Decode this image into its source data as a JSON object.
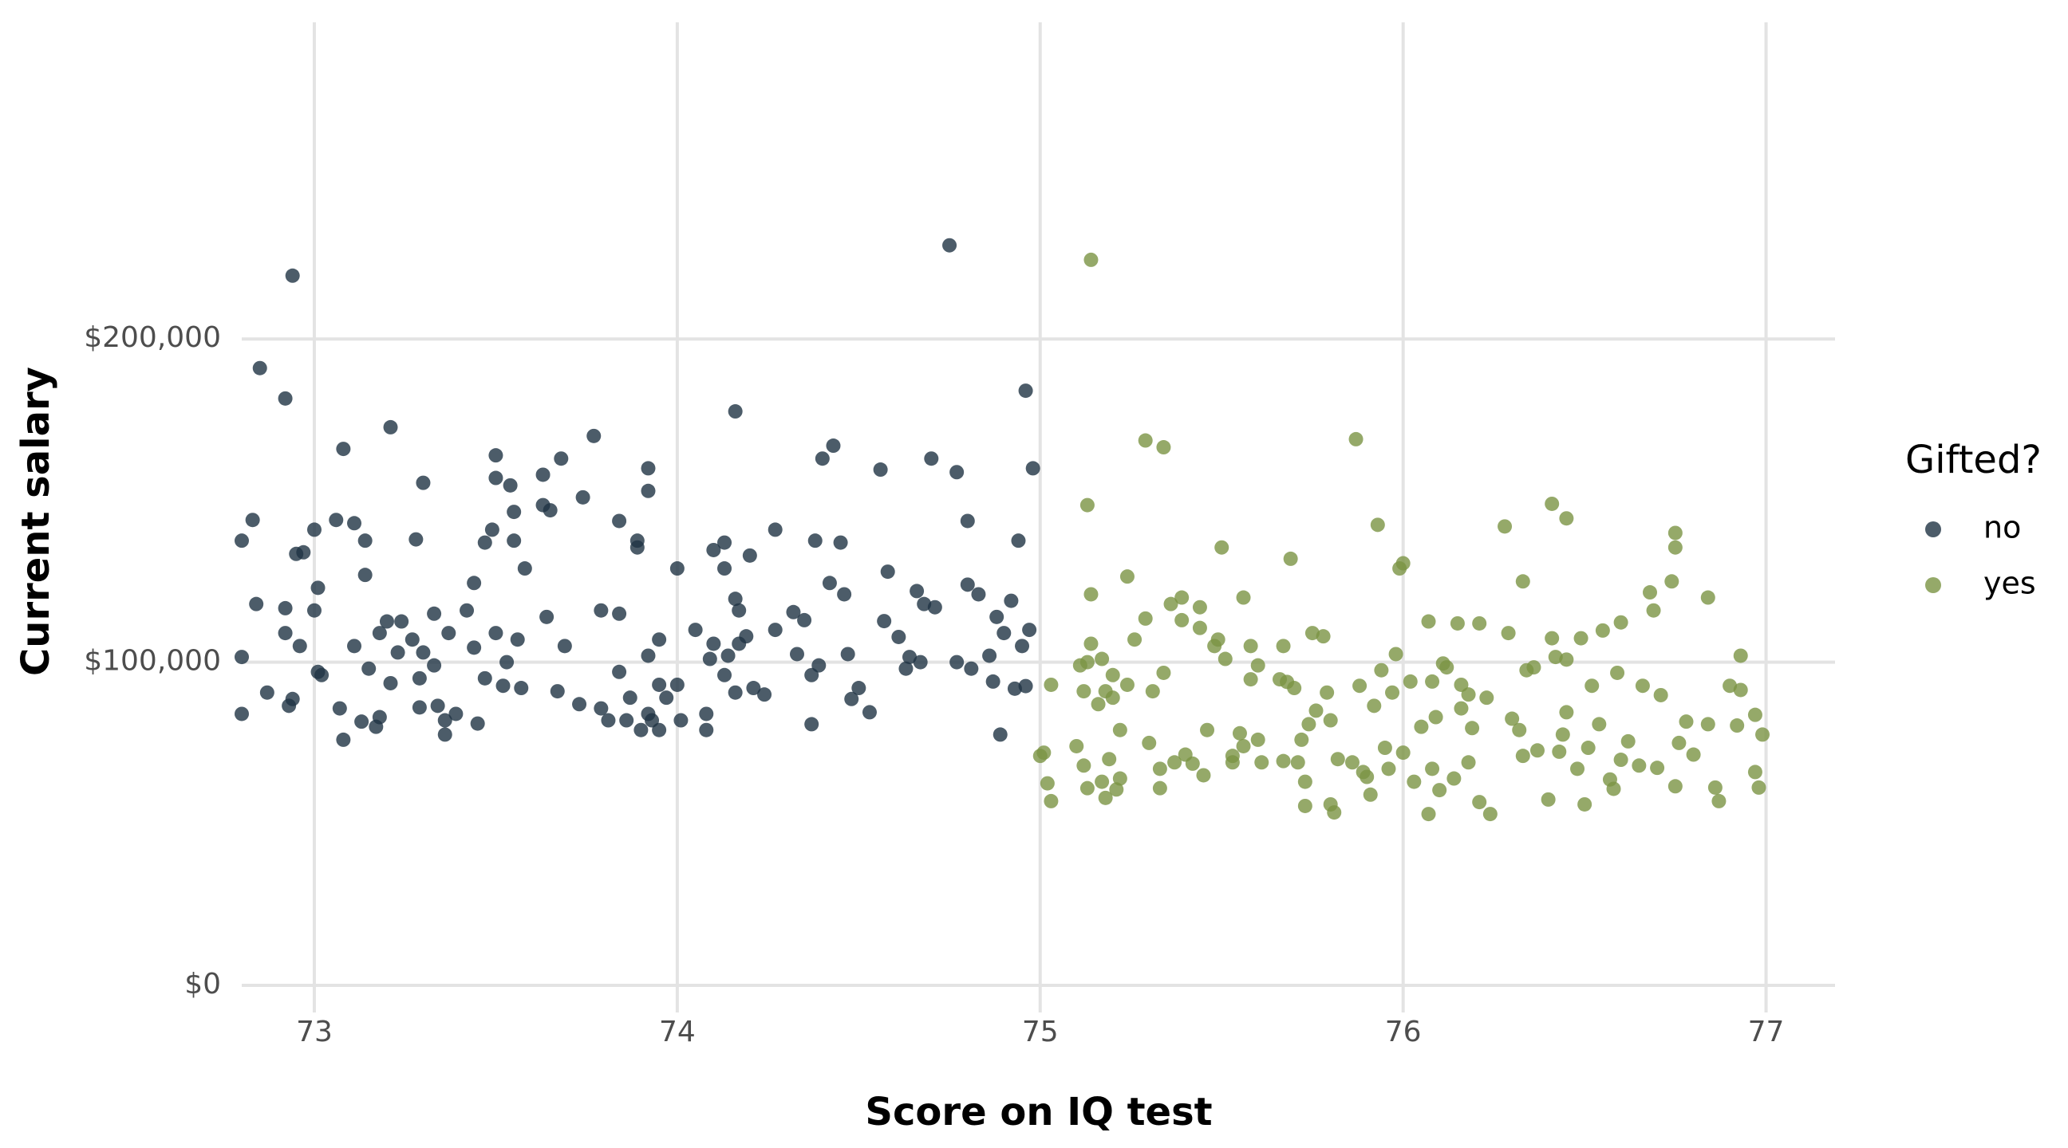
{
  "chart_data": {
    "type": "scatter",
    "x_label": "Score on IQ test",
    "y_label": "Current salary",
    "legend_title": "Gifted?",
    "legend_position": "right",
    "grid": true,
    "xlim": [
      72.8,
      77.19
    ],
    "ylim": [
      -8400,
      298000
    ],
    "xticks": [
      73,
      74,
      75,
      76,
      77
    ],
    "yticks": [
      {
        "value": 0,
        "label": "$0"
      },
      {
        "value": 100000,
        "label": "$100,000"
      },
      {
        "value": 200000,
        "label": "$200,000"
      }
    ],
    "series": [
      {
        "name": "no",
        "color": "#1f3344",
        "x": [
          72.8,
          72.8,
          72.8,
          72.83,
          72.85,
          72.84,
          72.87,
          72.92,
          72.94,
          72.92,
          72.92,
          72.93,
          72.94,
          72.95,
          72.97,
          72.96,
          73.0,
          73.0,
          73.01,
          73.01,
          73.02,
          73.06,
          73.08,
          73.07,
          73.08,
          73.11,
          73.11,
          73.14,
          73.14,
          73.13,
          73.15,
          73.17,
          73.18,
          73.18,
          73.2,
          73.21,
          73.21,
          73.23,
          73.24,
          73.28,
          73.27,
          73.29,
          73.29,
          73.3,
          73.3,
          73.33,
          73.33,
          73.34,
          73.36,
          73.36,
          73.39,
          73.37,
          73.42,
          73.44,
          73.44,
          73.45,
          73.47,
          73.47,
          73.49,
          73.5,
          73.5,
          73.5,
          73.52,
          73.53,
          73.54,
          73.55,
          73.55,
          73.56,
          73.57,
          73.58,
          73.63,
          73.63,
          73.64,
          73.65,
          73.68,
          73.69,
          73.67,
          73.73,
          73.74,
          73.77,
          73.79,
          73.79,
          73.81,
          73.84,
          73.84,
          73.84,
          73.86,
          73.87,
          73.89,
          73.89,
          73.9,
          73.92,
          73.92,
          73.92,
          73.92,
          73.93,
          73.95,
          73.95,
          73.95,
          73.97,
          74.0,
          74.0,
          74.01,
          74.05,
          74.08,
          74.08,
          74.09,
          74.1,
          74.1,
          74.13,
          74.13,
          74.13,
          74.14,
          74.16,
          74.16,
          74.17,
          74.16,
          74.17,
          74.19,
          74.2,
          74.21,
          74.24,
          74.27,
          74.27,
          74.32,
          74.33,
          74.35,
          74.37,
          74.38,
          74.37,
          74.39,
          74.4,
          74.42,
          74.43,
          74.45,
          74.46,
          74.47,
          74.48,
          74.5,
          74.53,
          74.56,
          74.58,
          74.57,
          74.61,
          74.63,
          74.64,
          74.66,
          74.67,
          74.68,
          74.7,
          74.71,
          74.75,
          74.77,
          74.77,
          74.8,
          74.8,
          74.81,
          74.83,
          74.87,
          74.86,
          74.88,
          74.89,
          74.9,
          74.92,
          74.93,
          74.94,
          74.95,
          74.96,
          74.96,
          74.97,
          74.98
        ],
        "values": [
          84000,
          137600,
          101600,
          144000,
          191000,
          118000,
          90600,
          181600,
          219600,
          116700,
          109000,
          86500,
          88600,
          133500,
          134000,
          105000,
          141000,
          116000,
          123000,
          97000,
          96000,
          144000,
          166000,
          85700,
          76000,
          105000,
          143000,
          137600,
          127000,
          81600,
          98000,
          80000,
          83000,
          109000,
          112600,
          172700,
          93500,
          103000,
          112600,
          138000,
          107000,
          86000,
          95000,
          155500,
          103000,
          99000,
          115000,
          86500,
          82000,
          77600,
          84000,
          109000,
          116000,
          104500,
          124500,
          81000,
          95000,
          137000,
          141000,
          164000,
          157000,
          109000,
          92700,
          100000,
          154700,
          137600,
          146500,
          107000,
          92000,
          129000,
          158000,
          148600,
          114000,
          147000,
          163000,
          105000,
          91000,
          87000,
          151000,
          170000,
          116000,
          85700,
          82000,
          97000,
          115000,
          143700,
          82000,
          89000,
          135500,
          137600,
          79000,
          102000,
          160000,
          153000,
          84000,
          82000,
          107000,
          79000,
          93000,
          89000,
          129000,
          93000,
          82000,
          110000,
          84000,
          79000,
          101000,
          105700,
          134700,
          137000,
          129000,
          96000,
          102000,
          177600,
          119600,
          116000,
          90600,
          105700,
          108000,
          133000,
          92000,
          90000,
          141000,
          110000,
          115500,
          102500,
          113000,
          80800,
          137600,
          96000,
          99000,
          163000,
          124500,
          167000,
          137000,
          121000,
          102500,
          88600,
          92000,
          84500,
          159600,
          128000,
          112700,
          107800,
          98000,
          101600,
          122000,
          100000,
          118000,
          163000,
          117000,
          229000,
          100000,
          158800,
          124000,
          143700,
          98000,
          121000,
          94000,
          102000,
          114000,
          77600,
          109000,
          119000,
          91800,
          137600,
          105000,
          92600,
          184000,
          110000,
          160000
        ]
      },
      {
        "name": "yes",
        "color": "#7a9444",
        "x": [
          75.0,
          75.01,
          75.02,
          75.03,
          75.03,
          75.1,
          75.11,
          75.12,
          75.12,
          75.13,
          75.13,
          75.13,
          75.14,
          75.14,
          75.14,
          75.16,
          75.17,
          75.17,
          75.18,
          75.18,
          75.19,
          75.2,
          75.2,
          75.21,
          75.22,
          75.22,
          75.24,
          75.24,
          75.26,
          75.29,
          75.29,
          75.3,
          75.31,
          75.33,
          75.33,
          75.34,
          75.34,
          75.36,
          75.37,
          75.39,
          75.39,
          75.4,
          75.42,
          75.44,
          75.44,
          75.45,
          75.46,
          75.48,
          75.49,
          75.5,
          75.51,
          75.53,
          75.53,
          75.55,
          75.56,
          75.56,
          75.58,
          75.58,
          75.6,
          75.6,
          75.61,
          75.66,
          75.67,
          75.67,
          75.68,
          75.69,
          75.7,
          75.71,
          75.72,
          75.73,
          75.73,
          75.74,
          75.75,
          75.76,
          75.78,
          75.79,
          75.8,
          75.81,
          75.8,
          75.82,
          75.86,
          75.87,
          75.88,
          75.89,
          75.9,
          75.91,
          75.92,
          75.93,
          75.94,
          75.95,
          75.96,
          75.97,
          75.98,
          75.99,
          76.0,
          76.0,
          76.02,
          76.03,
          76.05,
          76.07,
          76.08,
          76.07,
          76.08,
          76.09,
          76.1,
          76.11,
          76.12,
          76.14,
          76.15,
          76.16,
          76.16,
          76.18,
          76.18,
          76.19,
          76.21,
          76.21,
          76.23,
          76.24,
          76.28,
          76.29,
          76.3,
          76.32,
          76.33,
          76.33,
          76.34,
          76.36,
          76.37,
          76.4,
          76.41,
          76.41,
          76.42,
          76.43,
          76.44,
          76.45,
          76.45,
          76.45,
          76.49,
          76.48,
          76.5,
          76.51,
          76.52,
          76.54,
          76.55,
          76.57,
          76.58,
          76.59,
          76.6,
          76.6,
          76.62,
          76.65,
          76.66,
          76.68,
          76.69,
          76.7,
          76.71,
          76.74,
          76.75,
          76.75,
          76.75,
          76.76,
          76.78,
          76.8,
          76.84,
          76.84,
          76.86,
          76.87,
          76.9,
          76.92,
          76.93,
          76.93,
          76.97,
          76.98,
          76.97,
          76.99
        ],
        "values": [
          71000,
          72000,
          62500,
          93000,
          57000,
          74000,
          99000,
          91000,
          68000,
          148600,
          100000,
          61000,
          105700,
          121000,
          224500,
          87000,
          101000,
          63000,
          91000,
          58000,
          70000,
          96000,
          89000,
          60600,
          79000,
          64000,
          126500,
          93000,
          107000,
          113500,
          168600,
          75000,
          91000,
          67000,
          61000,
          166500,
          96700,
          118000,
          69000,
          120000,
          113000,
          71400,
          68600,
          117000,
          110600,
          65000,
          79000,
          105000,
          107000,
          135500,
          101000,
          71000,
          69000,
          78000,
          74000,
          120000,
          94700,
          105000,
          76000,
          99000,
          69000,
          94700,
          105000,
          69400,
          93900,
          132000,
          92000,
          69000,
          76000,
          63000,
          55500,
          80800,
          109000,
          85000,
          108000,
          90600,
          82000,
          53500,
          56000,
          70000,
          69000,
          169000,
          92700,
          66000,
          64500,
          59000,
          86500,
          142500,
          97500,
          73500,
          67000,
          90600,
          102500,
          129000,
          130600,
          72000,
          94000,
          63000,
          80000,
          112600,
          94000,
          53000,
          67000,
          83000,
          60400,
          99600,
          98400,
          64000,
          112000,
          85700,
          93000,
          69000,
          90000,
          79600,
          112000,
          56700,
          89000,
          53000,
          142000,
          109000,
          82500,
          79000,
          125000,
          71000,
          97500,
          98400,
          72700,
          57500,
          149000,
          107400,
          101600,
          72300,
          77600,
          100800,
          84500,
          144500,
          107400,
          67000,
          56000,
          73500,
          92700,
          80800,
          109800,
          63700,
          60800,
          96700,
          69800,
          112300,
          75500,
          68000,
          92700,
          121600,
          116000,
          67300,
          89800,
          125000,
          140000,
          135500,
          61600,
          75000,
          81600,
          71400,
          120000,
          80800,
          61200,
          57000,
          92700,
          80400,
          102000,
          91400,
          83700,
          61200,
          66000,
          77600
        ]
      }
    ]
  }
}
